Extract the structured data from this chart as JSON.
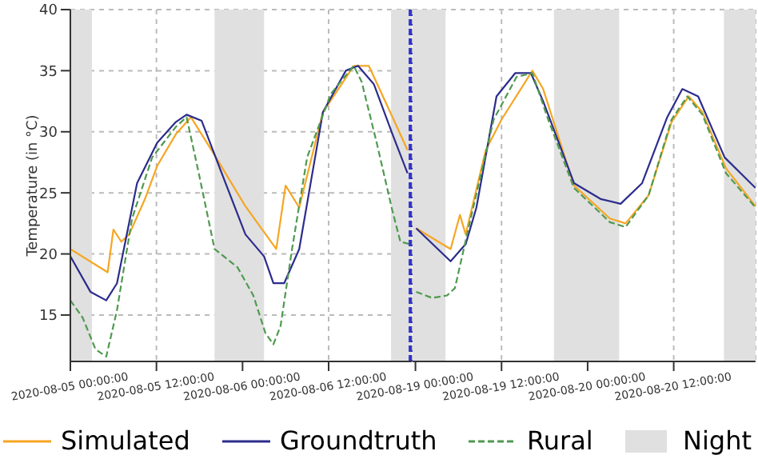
{
  "chart_data": [
    {
      "type": "line",
      "ylabel": "Temperature (in °C)",
      "xlim": [
        "2020-08-05T00:00",
        "2020-08-06T23:36"
      ],
      "ylim": [
        11.2,
        40
      ],
      "xticks": [
        {
          "value": "2020-08-05T00:00",
          "label": "2020-08-05 00:00:00"
        },
        {
          "value": "2020-08-05T12:00",
          "label": "2020-08-05 12:00:00"
        },
        {
          "value": "2020-08-06T00:00",
          "label": "2020-08-06 00:00:00"
        },
        {
          "value": "2020-08-06T12:00",
          "label": "2020-08-06 12:00:00"
        }
      ],
      "yticks": [
        15,
        20,
        25,
        30,
        35,
        40
      ],
      "grid": true,
      "legend": "bottom",
      "bands": [
        {
          "axis": "x",
          "from": "2020-08-05T00:00",
          "to": "2020-08-05T03:00",
          "label": "Night",
          "color": "#e0e0e0"
        },
        {
          "axis": "x",
          "from": "2020-08-05T20:06",
          "to": "2020-08-06T03:00",
          "color": "#e0e0e0"
        },
        {
          "axis": "x",
          "from": "2020-08-06T20:42",
          "to": "2020-08-06T23:36",
          "color": "#e0e0e0"
        }
      ],
      "ref_lines": [
        {
          "axis": "x",
          "value": "2020-08-06T23:36",
          "color": "#3333cc",
          "line_style": "dashed"
        }
      ],
      "series": [
        {
          "name": "Simulated",
          "color": "#f5a623",
          "line_style": "solid",
          "x": [
            "2020-08-05T00:00",
            "2020-08-05T05:12",
            "2020-08-05T06:00",
            "2020-08-05T07:06",
            "2020-08-05T08:12",
            "2020-08-05T10:24",
            "2020-08-05T12:06",
            "2020-08-05T14:42",
            "2020-08-05T16:48",
            "2020-08-05T20:06",
            "2020-08-06T00:24",
            "2020-08-06T04:42",
            "2020-08-06T06:00",
            "2020-08-06T07:54",
            "2020-08-06T11:12",
            "2020-08-06T15:30",
            "2020-08-06T17:36",
            "2020-08-06T20:54",
            "2020-08-06T23:00"
          ],
          "values": [
            20.4,
            18.5,
            22,
            21,
            21.6,
            24.5,
            27.2,
            29.8,
            31.2,
            28.1,
            23.9,
            20.4,
            25.6,
            23.8,
            31.6,
            35.4,
            35.4,
            31.2,
            28.5
          ]
        },
        {
          "name": "Groundtruth",
          "color": "#2c2c8c",
          "line_style": "solid",
          "x": [
            "2020-08-05T00:00",
            "2020-08-05T02:48",
            "2020-08-05T05:00",
            "2020-08-05T06:30",
            "2020-08-05T09:18",
            "2020-08-05T12:06",
            "2020-08-05T14:42",
            "2020-08-05T16:12",
            "2020-08-05T18:18",
            "2020-08-05T21:06",
            "2020-08-06T00:24",
            "2020-08-06T03:00",
            "2020-08-06T04:18",
            "2020-08-06T05:48",
            "2020-08-06T07:54",
            "2020-08-06T11:12",
            "2020-08-06T14:24",
            "2020-08-06T16:06",
            "2020-08-06T18:18",
            "2020-08-06T20:54",
            "2020-08-06T23:00"
          ],
          "values": [
            19.8,
            16.9,
            16.2,
            17.6,
            25.8,
            29.1,
            30.8,
            31.4,
            30.9,
            26.6,
            21.6,
            19.8,
            17.6,
            17.6,
            20.4,
            31.6,
            35,
            35.4,
            33.9,
            29.8,
            26.6
          ]
        },
        {
          "name": "Rural",
          "color": "#4f9a4f",
          "line_style": "dashed",
          "x": [
            "2020-08-05T00:00",
            "2020-08-05T01:42",
            "2020-08-05T03:30",
            "2020-08-05T05:00",
            "2020-08-05T06:30",
            "2020-08-05T08:36",
            "2020-08-05T11:24",
            "2020-08-05T14:42",
            "2020-08-05T16:12",
            "2020-08-05T17:54",
            "2020-08-05T20:06",
            "2020-08-05T23:18",
            "2020-08-06T01:30",
            "2020-08-06T03:12",
            "2020-08-06T04:18",
            "2020-08-06T05:18",
            "2020-08-06T06:54",
            "2020-08-06T09:00",
            "2020-08-06T12:18",
            "2020-08-06T15:30",
            "2020-08-06T16:36",
            "2020-08-06T18:42",
            "2020-08-06T20:54",
            "2020-08-06T22:00",
            "2020-08-06T23:18"
          ],
          "values": [
            16.2,
            14.8,
            12.2,
            11.6,
            15.4,
            22.9,
            27.9,
            30.4,
            31.2,
            26.6,
            20.4,
            18.9,
            16.6,
            13.5,
            12.6,
            14.1,
            20.4,
            27.9,
            33.1,
            35.4,
            34.1,
            29.1,
            23.5,
            21,
            20.8
          ]
        }
      ]
    },
    {
      "type": "line",
      "tick_labels": "x",
      "xlim": [
        "2020-08-18T23:36",
        "2020-08-20T23:24"
      ],
      "ylim": [
        11.2,
        40
      ],
      "xticks": [
        {
          "value": "2020-08-19T00:00",
          "label": "2020-08-19 00:00:00"
        },
        {
          "value": "2020-08-19T12:00",
          "label": "2020-08-19 12:00:00"
        },
        {
          "value": "2020-08-20T00:00",
          "label": "2020-08-20 00:00:00"
        },
        {
          "value": "2020-08-20T12:00",
          "label": "2020-08-20 12:00:00"
        }
      ],
      "yticks": [
        15,
        20,
        25,
        30,
        35,
        40
      ],
      "grid": true,
      "bands": [
        {
          "axis": "x",
          "from": "2020-08-18T23:36",
          "to": "2020-08-19T04:12",
          "color": "#e0e0e0"
        },
        {
          "axis": "x",
          "from": "2020-08-19T19:18",
          "to": "2020-08-20T04:24",
          "color": "#e0e0e0"
        },
        {
          "axis": "x",
          "from": "2020-08-20T19:00",
          "to": "2020-08-20T23:24",
          "color": "#e0e0e0"
        }
      ],
      "series": [
        {
          "color": "#f5a623",
          "line_style": "solid",
          "x": [
            "2020-08-19T00:06",
            "2020-08-19T04:54",
            "2020-08-19T06:12",
            "2020-08-19T07:00",
            "2020-08-19T09:48",
            "2020-08-19T12:00",
            "2020-08-19T16:18",
            "2020-08-19T17:48",
            "2020-08-19T22:06",
            "2020-08-20T03:06",
            "2020-08-20T05:18",
            "2020-08-20T08:30",
            "2020-08-20T11:42",
            "2020-08-20T14:06",
            "2020-08-20T16:00",
            "2020-08-20T19:18",
            "2020-08-20T23:24"
          ],
          "values": [
            22.1,
            20.4,
            23.2,
            21.6,
            28.5,
            31,
            35,
            33.5,
            25.6,
            22.9,
            22.5,
            24.8,
            30.8,
            32.9,
            31.6,
            27,
            23.9
          ]
        },
        {
          "color": "#2c2c8c",
          "line_style": "solid",
          "x": [
            "2020-08-19T00:06",
            "2020-08-19T04:54",
            "2020-08-19T07:00",
            "2020-08-19T08:30",
            "2020-08-19T11:18",
            "2020-08-19T13:54",
            "2020-08-19T16:06",
            "2020-08-19T17:48",
            "2020-08-19T22:06",
            "2020-08-20T01:48",
            "2020-08-20T04:36",
            "2020-08-20T07:36",
            "2020-08-20T11:06",
            "2020-08-20T13:12",
            "2020-08-20T15:24",
            "2020-08-20T19:06",
            "2020-08-20T23:24"
          ],
          "values": [
            22.1,
            19.4,
            20.8,
            23.8,
            32.9,
            34.8,
            34.8,
            32.5,
            25.8,
            24.5,
            24.1,
            25.8,
            31.2,
            33.5,
            32.9,
            27.9,
            25.4
          ]
        },
        {
          "color": "#4f9a4f",
          "line_style": "dashed",
          "x": [
            "2020-08-19T00:06",
            "2020-08-19T02:18",
            "2020-08-19T04:24",
            "2020-08-19T05:30",
            "2020-08-19T07:42",
            "2020-08-19T10:54",
            "2020-08-19T14:06",
            "2020-08-19T16:18",
            "2020-08-19T18:30",
            "2020-08-19T22:06",
            "2020-08-20T03:06",
            "2020-08-20T05:18",
            "2020-08-20T08:30",
            "2020-08-20T11:42",
            "2020-08-20T13:54",
            "2020-08-20T16:00",
            "2020-08-20T19:18",
            "2020-08-20T23:24"
          ],
          "values": [
            16.9,
            16.4,
            16.6,
            17.2,
            22.9,
            31,
            34.5,
            34.8,
            31,
            25.4,
            22.6,
            22.2,
            24.8,
            31,
            32.9,
            31.4,
            26.6,
            23.8
          ]
        }
      ]
    }
  ]
}
